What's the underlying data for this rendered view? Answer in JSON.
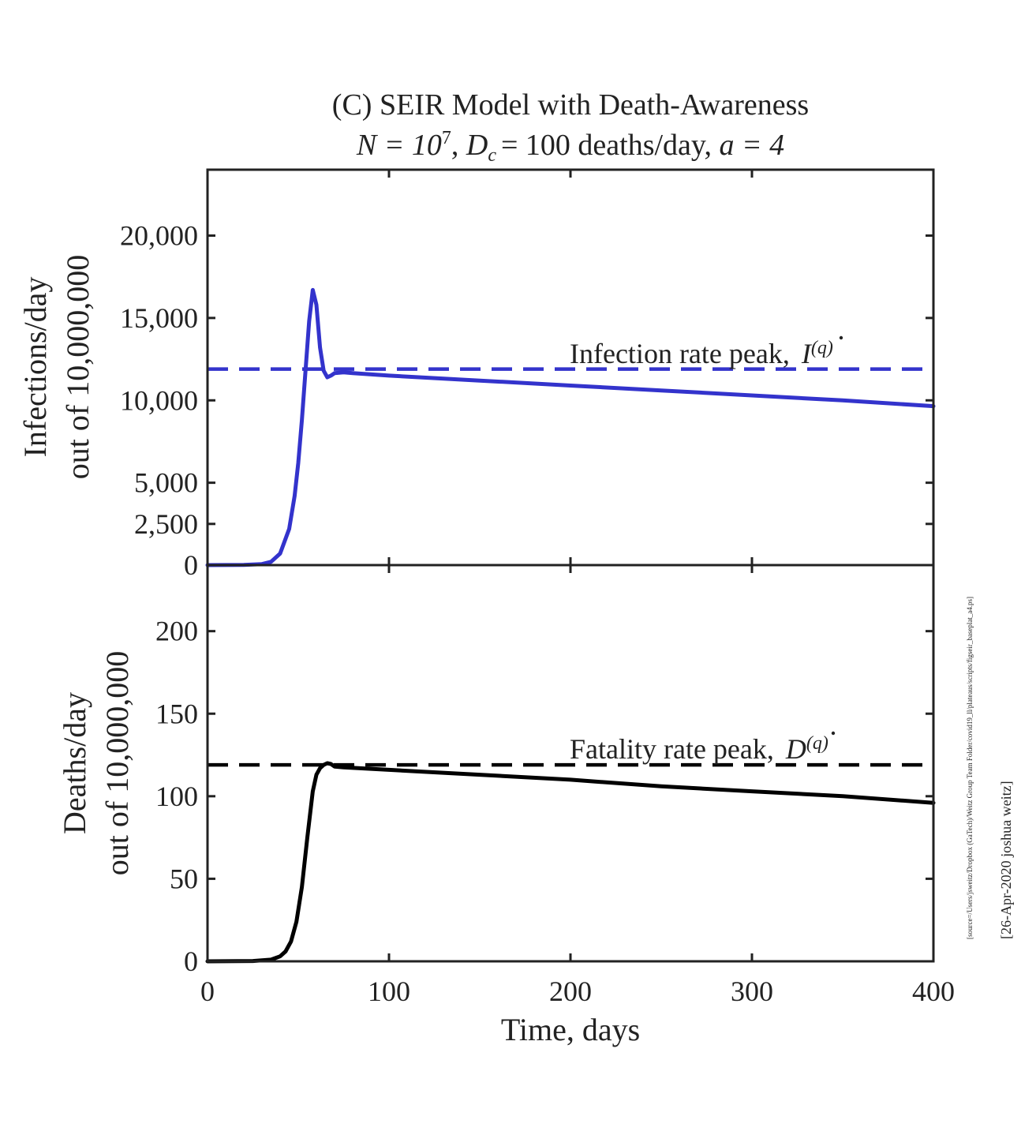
{
  "chart_data": [
    {
      "type": "line",
      "title_line1": "(C) SEIR Model with Death-Awareness",
      "title_line2": {
        "n_label": "N = 10",
        "n_exp": "7",
        "sep": ",",
        "dc_label": "D",
        "dc_sub": "c",
        "dc_rest": "= 100 deaths/day,",
        "a_label": "a = 4"
      },
      "ylabel_line1": "Infections/day",
      "ylabel_line2": "out of 10,000,000",
      "ylim": [
        0,
        24000
      ],
      "xlim": [
        0,
        400
      ],
      "yticks": [
        0,
        2500,
        5000,
        10000,
        15000,
        20000
      ],
      "ytick_labels": [
        "0",
        "2,500",
        "5,000",
        "10,000",
        "15,000",
        "20,000"
      ],
      "xticks": [
        0,
        100,
        200,
        300,
        400
      ],
      "series": [
        {
          "color": "#3333cc",
          "x": [
            0,
            20,
            30,
            35,
            40,
            45,
            48,
            50,
            52,
            54,
            56,
            58,
            60,
            62,
            64,
            66,
            68,
            70,
            75,
            80,
            100,
            150,
            200,
            250,
            300,
            350,
            400
          ],
          "y": [
            0,
            10,
            60,
            200,
            700,
            2200,
            4200,
            6200,
            8800,
            11800,
            14800,
            16700,
            15800,
            13200,
            11800,
            11400,
            11500,
            11650,
            11700,
            11650,
            11500,
            11200,
            10900,
            10600,
            10300,
            10000,
            9650
          ]
        }
      ],
      "reference_line": {
        "y": 11900,
        "style": "dashed",
        "color": "#3333cc",
        "label_text": "Infection rate peak,",
        "label_symbol": "I",
        "label_sup": "(q)"
      }
    },
    {
      "type": "line",
      "xlabel": "Time, days",
      "ylabel_line1": "Deaths/day",
      "ylabel_line2": "out of 10,000,000",
      "ylim": [
        0,
        240
      ],
      "xlim": [
        0,
        400
      ],
      "yticks": [
        0,
        50,
        100,
        150,
        200
      ],
      "ytick_labels": [
        "0",
        "50",
        "100",
        "150",
        "200"
      ],
      "xticks": [
        0,
        100,
        200,
        300,
        400
      ],
      "xtick_labels": [
        "0",
        "100",
        "200",
        "300",
        "400"
      ],
      "series": [
        {
          "color": "#000000",
          "x": [
            0,
            25,
            35,
            40,
            43,
            46,
            49,
            52,
            55,
            58,
            60,
            62,
            64,
            66,
            68,
            70,
            75,
            100,
            150,
            200,
            250,
            300,
            350,
            400
          ],
          "y": [
            0,
            0.2,
            1,
            3,
            6,
            12,
            24,
            45,
            75,
            103,
            113,
            117,
            119,
            120,
            119.5,
            118,
            117.5,
            116,
            113,
            110,
            106,
            103,
            100,
            96
          ]
        }
      ],
      "reference_line": {
        "y": 119,
        "style": "dashed",
        "color": "#000000",
        "label_text": "Fatality rate peak,",
        "label_symbol": "D",
        "label_sup": "(q)"
      }
    }
  ],
  "side_text": {
    "source": "[source=/Users/jsweitz/Dropbox (GaTech)/Weitz Group Team Folder/covid19_ll/plateaus/scripts/figseir_baseplat_a4.ps]",
    "stamp": "[26-Apr-2020 joshua weitz]"
  }
}
